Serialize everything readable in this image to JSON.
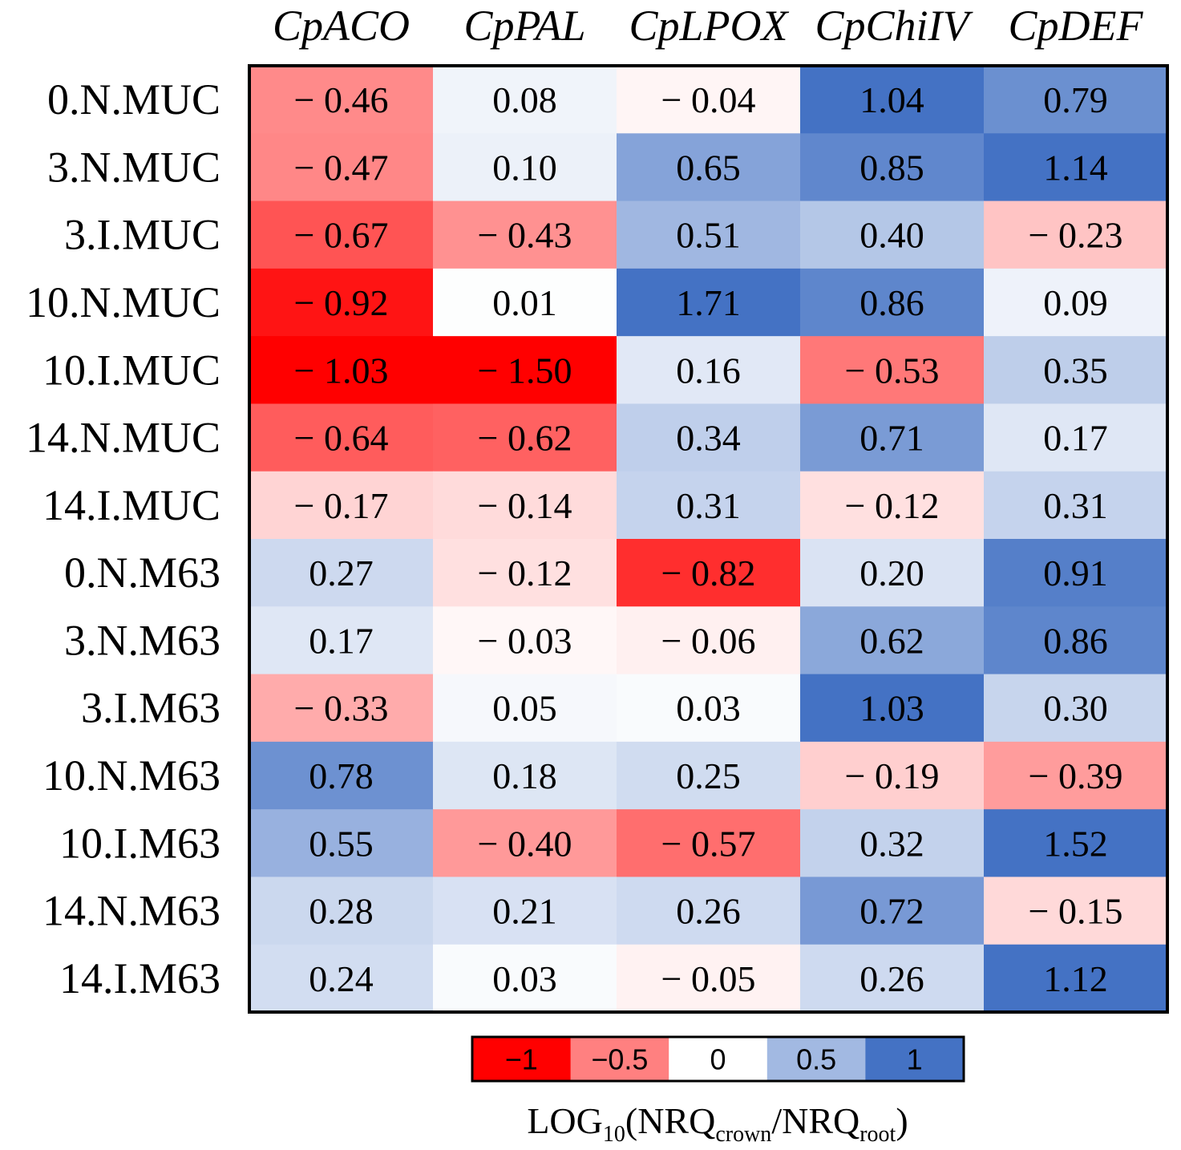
{
  "chart_data": {
    "type": "heatmap",
    "columns": [
      "CpACO",
      "CpPAL",
      "CpLPOX",
      "CpChiIV",
      "CpDEF"
    ],
    "rows": [
      "0.N.MUC",
      "3.N.MUC",
      "3.I.MUC",
      "10.N.MUC",
      "10.I.MUC",
      "14.N.MUC",
      "14.I.MUC",
      "0.N.M63",
      "3.N.M63",
      "3.I.M63",
      "10.N.M63",
      "10.I.M63",
      "14.N.M63",
      "14.I.M63"
    ],
    "values": [
      [
        -0.46,
        0.08,
        -0.04,
        1.04,
        0.79
      ],
      [
        -0.47,
        0.1,
        0.65,
        0.85,
        1.14
      ],
      [
        -0.67,
        -0.43,
        0.51,
        0.4,
        -0.23
      ],
      [
        -0.92,
        0.01,
        1.71,
        0.86,
        0.09
      ],
      [
        -1.03,
        -1.5,
        0.16,
        -0.53,
        0.35
      ],
      [
        -0.64,
        -0.62,
        0.34,
        0.71,
        0.17
      ],
      [
        -0.17,
        -0.14,
        0.31,
        -0.12,
        0.31
      ],
      [
        0.27,
        -0.12,
        -0.82,
        0.2,
        0.91
      ],
      [
        0.17,
        -0.03,
        -0.06,
        0.62,
        0.86
      ],
      [
        -0.33,
        0.05,
        0.03,
        1.03,
        0.3
      ],
      [
        0.78,
        0.18,
        0.25,
        -0.19,
        -0.39
      ],
      [
        0.55,
        -0.4,
        -0.57,
        0.32,
        1.52
      ],
      [
        0.28,
        0.21,
        0.26,
        0.72,
        -0.15
      ],
      [
        0.24,
        0.03,
        -0.05,
        0.26,
        1.12
      ]
    ],
    "labels": [
      [
        "− 0.46",
        "0.08",
        "− 0.04",
        "1.04",
        "0.79"
      ],
      [
        "− 0.47",
        "0.10",
        "0.65",
        "0.85",
        "1.14"
      ],
      [
        "− 0.67",
        "− 0.43",
        "0.51",
        "0.40",
        "− 0.23"
      ],
      [
        "− 0.92",
        "0.01",
        "1.71",
        "0.86",
        "0.09"
      ],
      [
        "− 1.03",
        "− 1.50",
        "0.16",
        "− 0.53",
        "0.35"
      ],
      [
        "− 0.64",
        "− 0.62",
        "0.34",
        "0.71",
        "0.17"
      ],
      [
        "− 0.17",
        "− 0.14",
        "0.31",
        "− 0.12",
        "0.31"
      ],
      [
        "0.27",
        "− 0.12",
        "− 0.82",
        "0.20",
        "0.91"
      ],
      [
        "0.17",
        "− 0.03",
        "− 0.06",
        "0.62",
        "0.86"
      ],
      [
        "− 0.33",
        "0.05",
        "0.03",
        "1.03",
        "0.30"
      ],
      [
        "0.78",
        "0.18",
        "0.25",
        "− 0.19",
        "− 0.39"
      ],
      [
        "0.55",
        "− 0.40",
        "− 0.57",
        "0.32",
        "1.52"
      ],
      [
        "0.28",
        "0.21",
        "0.26",
        "0.72",
        "− 0.15"
      ],
      [
        "0.24",
        "0.03",
        "− 0.05",
        "0.26",
        "1.12"
      ]
    ],
    "color_scale": {
      "min": -1,
      "max": 1,
      "negative_color": "#ff0000",
      "neutral_color": "#ffffff",
      "positive_color": "#4472c4"
    },
    "legend": {
      "ticks": [
        "−1",
        "−0.5",
        "0",
        "0.5",
        "1"
      ],
      "tick_values": [
        -1,
        -0.5,
        0,
        0.5,
        1
      ],
      "label_main": "LOG",
      "label_sub": "10",
      "label_open": "(NRQ",
      "label_num_sub": "crown",
      "label_mid": "/NRQ",
      "label_den_sub": "root",
      "label_close": ")",
      "position": "bottom-center"
    }
  }
}
